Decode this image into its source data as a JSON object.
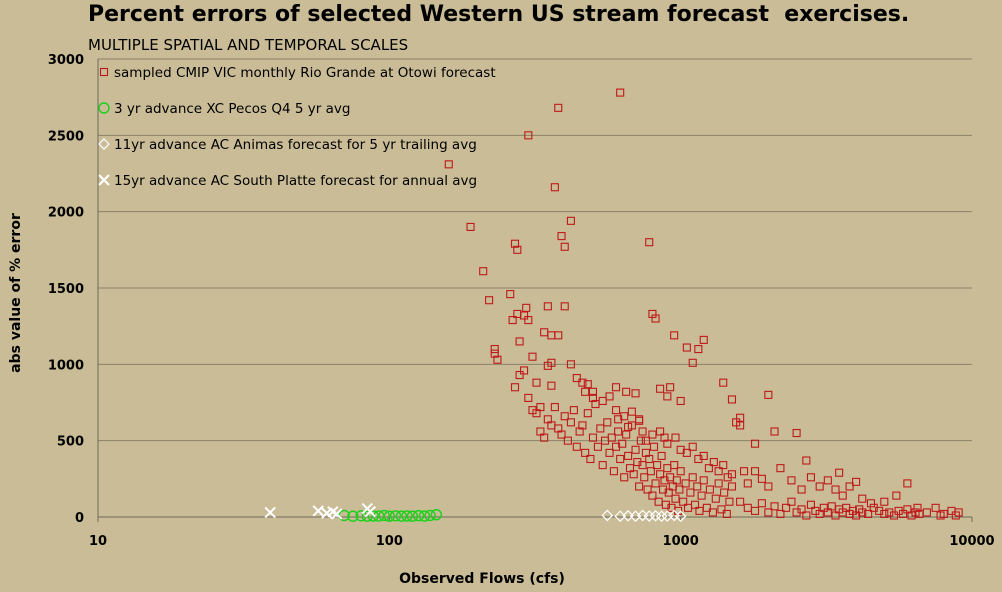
{
  "chart_data": {
    "type": "scatter",
    "title": "Percent errors of selected Western US stream forecast  exercises.",
    "subtitle": "MULTIPLE SPATIAL AND TEMPORAL SCALES",
    "xlabel": "Observed Flows  (cfs)",
    "ylabel": "abs value of % error",
    "xscale": "log",
    "xlim": [
      10,
      10000
    ],
    "ylim": [
      0,
      3000
    ],
    "xticks": [
      "10",
      "100",
      "1000",
      "10000"
    ],
    "yticks": [
      "0",
      "500",
      "1000",
      "1500",
      "2000",
      "2500",
      "3000"
    ],
    "grid": "horizontal",
    "legend_position": "top-left inside",
    "colors": {
      "background": "#c9bc96",
      "grid": "#8a826a",
      "series1": "#c0191b",
      "series2": "#19d219",
      "series3": "#ffffff",
      "series4": "#ffffff"
    },
    "series": [
      {
        "name": "sampled CMIP VIC monthly Rio Grande at Otowi forecast",
        "marker": "square",
        "points": [
          [
            160,
            2310
          ],
          [
            190,
            1900
          ],
          [
            210,
            1610
          ],
          [
            220,
            1420
          ],
          [
            230,
            1100
          ],
          [
            230,
            1070
          ],
          [
            235,
            1030
          ],
          [
            260,
            1460
          ],
          [
            265,
            1290
          ],
          [
            270,
            1790
          ],
          [
            275,
            1750
          ],
          [
            275,
            1330
          ],
          [
            280,
            1150
          ],
          [
            290,
            1320
          ],
          [
            295,
            1370
          ],
          [
            300,
            2500
          ],
          [
            300,
            1290
          ],
          [
            310,
            1050
          ],
          [
            320,
            880
          ],
          [
            270,
            850
          ],
          [
            280,
            930
          ],
          [
            290,
            960
          ],
          [
            300,
            780
          ],
          [
            310,
            700
          ],
          [
            330,
            720
          ],
          [
            340,
            1210
          ],
          [
            350,
            1380
          ],
          [
            360,
            1190
          ],
          [
            360,
            1010
          ],
          [
            350,
            990
          ],
          [
            360,
            860
          ],
          [
            370,
            2160
          ],
          [
            380,
            2680
          ],
          [
            390,
            1840
          ],
          [
            400,
            1770
          ],
          [
            400,
            1380
          ],
          [
            420,
            1940
          ],
          [
            420,
            1000
          ],
          [
            440,
            910
          ],
          [
            380,
            1190
          ],
          [
            460,
            880
          ],
          [
            470,
            820
          ],
          [
            480,
            870
          ],
          [
            500,
            820
          ],
          [
            500,
            780
          ],
          [
            540,
            760
          ],
          [
            570,
            790
          ],
          [
            600,
            850
          ],
          [
            620,
            2780
          ],
          [
            650,
            820
          ],
          [
            700,
            810
          ],
          [
            720,
            630
          ],
          [
            780,
            1800
          ],
          [
            800,
            1330
          ],
          [
            820,
            1300
          ],
          [
            850,
            840
          ],
          [
            900,
            790
          ],
          [
            920,
            850
          ],
          [
            950,
            1190
          ],
          [
            1000,
            760
          ],
          [
            1050,
            1110
          ],
          [
            1100,
            1010
          ],
          [
            1150,
            1100
          ],
          [
            1200,
            1160
          ],
          [
            1400,
            880
          ],
          [
            1500,
            770
          ],
          [
            1600,
            600
          ],
          [
            1800,
            480
          ],
          [
            2000,
            800
          ],
          [
            2100,
            560
          ],
          [
            2500,
            550
          ],
          [
            320,
            680
          ],
          [
            330,
            560
          ],
          [
            340,
            520
          ],
          [
            350,
            640
          ],
          [
            360,
            600
          ],
          [
            370,
            720
          ],
          [
            380,
            580
          ],
          [
            390,
            540
          ],
          [
            400,
            660
          ],
          [
            410,
            500
          ],
          [
            420,
            620
          ],
          [
            430,
            700
          ],
          [
            440,
            460
          ],
          [
            450,
            560
          ],
          [
            460,
            600
          ],
          [
            470,
            420
          ],
          [
            480,
            680
          ],
          [
            490,
            380
          ],
          [
            500,
            520
          ],
          [
            510,
            740
          ],
          [
            520,
            460
          ],
          [
            530,
            580
          ],
          [
            540,
            340
          ],
          [
            550,
            500
          ],
          [
            560,
            620
          ],
          [
            570,
            420
          ],
          [
            580,
            520
          ],
          [
            590,
            300
          ],
          [
            600,
            460
          ],
          [
            610,
            560
          ],
          [
            620,
            380
          ],
          [
            630,
            480
          ],
          [
            640,
            260
          ],
          [
            650,
            540
          ],
          [
            660,
            400
          ],
          [
            670,
            320
          ],
          [
            680,
            600
          ],
          [
            690,
            280
          ],
          [
            700,
            440
          ],
          [
            710,
            360
          ],
          [
            720,
            200
          ],
          [
            730,
            500
          ],
          [
            740,
            340
          ],
          [
            750,
            260
          ],
          [
            760,
            420
          ],
          [
            770,
            180
          ],
          [
            780,
            380
          ],
          [
            790,
            300
          ],
          [
            800,
            140
          ],
          [
            810,
            460
          ],
          [
            820,
            220
          ],
          [
            830,
            340
          ],
          [
            840,
            100
          ],
          [
            850,
            280
          ],
          [
            860,
            400
          ],
          [
            870,
            180
          ],
          [
            880,
            240
          ],
          [
            890,
            80
          ],
          [
            900,
            320
          ],
          [
            910,
            160
          ],
          [
            920,
            260
          ],
          [
            930,
            60
          ],
          [
            940,
            200
          ],
          [
            950,
            340
          ],
          [
            960,
            120
          ],
          [
            970,
            240
          ],
          [
            980,
            40
          ],
          [
            990,
            180
          ],
          [
            1000,
            300
          ],
          [
            1020,
            100
          ],
          [
            1040,
            220
          ],
          [
            1060,
            60
          ],
          [
            1080,
            160
          ],
          [
            1100,
            260
          ],
          [
            1120,
            80
          ],
          [
            1140,
            200
          ],
          [
            1160,
            40
          ],
          [
            1180,
            140
          ],
          [
            1200,
            240
          ],
          [
            1230,
            60
          ],
          [
            1260,
            180
          ],
          [
            1290,
            30
          ],
          [
            1320,
            120
          ],
          [
            1350,
            220
          ],
          [
            1380,
            50
          ],
          [
            1410,
            160
          ],
          [
            1440,
            20
          ],
          [
            1470,
            100
          ],
          [
            1500,
            200
          ],
          [
            600,
            700
          ],
          [
            610,
            640
          ],
          [
            640,
            660
          ],
          [
            660,
            590
          ],
          [
            680,
            690
          ],
          [
            720,
            640
          ],
          [
            740,
            560
          ],
          [
            760,
            500
          ],
          [
            800,
            540
          ],
          [
            850,
            560
          ],
          [
            880,
            520
          ],
          [
            900,
            480
          ],
          [
            960,
            520
          ],
          [
            1000,
            440
          ],
          [
            1050,
            420
          ],
          [
            1100,
            460
          ],
          [
            1150,
            380
          ],
          [
            1200,
            400
          ],
          [
            1250,
            320
          ],
          [
            1300,
            360
          ],
          [
            1350,
            300
          ],
          [
            1400,
            340
          ],
          [
            1450,
            260
          ],
          [
            1500,
            280
          ],
          [
            1550,
            620
          ],
          [
            1600,
            650
          ],
          [
            1650,
            300
          ],
          [
            1700,
            220
          ],
          [
            1800,
            300
          ],
          [
            1900,
            250
          ],
          [
            2000,
            200
          ],
          [
            2200,
            320
          ],
          [
            2400,
            240
          ],
          [
            2600,
            180
          ],
          [
            2700,
            370
          ],
          [
            2800,
            260
          ],
          [
            3000,
            200
          ],
          [
            3200,
            240
          ],
          [
            3400,
            180
          ],
          [
            3500,
            290
          ],
          [
            3600,
            140
          ],
          [
            3800,
            200
          ],
          [
            4000,
            230
          ],
          [
            4200,
            120
          ],
          [
            4500,
            90
          ],
          [
            5000,
            100
          ],
          [
            5500,
            140
          ],
          [
            6000,
            220
          ],
          [
            6500,
            60
          ],
          [
            1600,
            100
          ],
          [
            1700,
            60
          ],
          [
            1800,
            40
          ],
          [
            1900,
            90
          ],
          [
            2000,
            30
          ],
          [
            2100,
            70
          ],
          [
            2200,
            20
          ],
          [
            2300,
            60
          ],
          [
            2400,
            100
          ],
          [
            2500,
            30
          ],
          [
            2600,
            50
          ],
          [
            2700,
            10
          ],
          [
            2800,
            80
          ],
          [
            2900,
            40
          ],
          [
            3000,
            20
          ],
          [
            3100,
            60
          ],
          [
            3200,
            30
          ],
          [
            3300,
            70
          ],
          [
            3400,
            10
          ],
          [
            3500,
            50
          ],
          [
            3600,
            30
          ],
          [
            3700,
            60
          ],
          [
            3800,
            20
          ],
          [
            3900,
            40
          ],
          [
            4000,
            10
          ],
          [
            4100,
            50
          ],
          [
            4200,
            30
          ],
          [
            4400,
            20
          ],
          [
            4600,
            60
          ],
          [
            4800,
            40
          ],
          [
            5000,
            20
          ],
          [
            5200,
            30
          ],
          [
            5400,
            10
          ],
          [
            5600,
            40
          ],
          [
            5800,
            20
          ],
          [
            6000,
            50
          ],
          [
            6200,
            10
          ],
          [
            6400,
            30
          ],
          [
            6600,
            20
          ],
          [
            7000,
            30
          ],
          [
            7500,
            60
          ],
          [
            8000,
            20
          ],
          [
            8500,
            40
          ],
          [
            9000,
            30
          ],
          [
            8800,
            10
          ],
          [
            7800,
            10
          ]
        ]
      },
      {
        "name": "3 yr advance XC Pecos Q4 5 yr avg",
        "marker": "circle",
        "points": [
          [
            70,
            10
          ],
          [
            75,
            5
          ],
          [
            80,
            8
          ],
          [
            84,
            5
          ],
          [
            88,
            7
          ],
          [
            92,
            6
          ],
          [
            96,
            10
          ],
          [
            100,
            5
          ],
          [
            105,
            8
          ],
          [
            110,
            5
          ],
          [
            115,
            7
          ],
          [
            120,
            5
          ],
          [
            126,
            9
          ],
          [
            132,
            6
          ],
          [
            138,
            10
          ],
          [
            145,
            15
          ]
        ]
      },
      {
        "name": "11yr advance AC Animas forecast for 5 yr trailing avg",
        "marker": "diamond",
        "points": [
          [
            560,
            10
          ],
          [
            620,
            5
          ],
          [
            660,
            8
          ],
          [
            700,
            5
          ],
          [
            740,
            10
          ],
          [
            780,
            6
          ],
          [
            820,
            8
          ],
          [
            860,
            5
          ],
          [
            900,
            6
          ],
          [
            950,
            10
          ],
          [
            1000,
            5
          ]
        ]
      },
      {
        "name": "15yr advance AC South Platte forecast for annual avg",
        "marker": "x",
        "points": [
          [
            39,
            30
          ],
          [
            57,
            40
          ],
          [
            61,
            25
          ],
          [
            64,
            35
          ],
          [
            66,
            20
          ],
          [
            84,
            55
          ],
          [
            86,
            35
          ]
        ]
      }
    ]
  }
}
